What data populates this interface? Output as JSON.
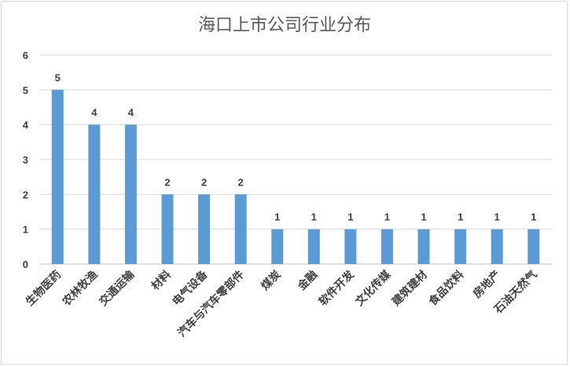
{
  "chart_data": {
    "type": "bar",
    "title": "海口上市公司行业分布",
    "xlabel": "",
    "ylabel": "",
    "ylim": [
      0,
      6
    ],
    "yticks": [
      0,
      1,
      2,
      3,
      4,
      5,
      6
    ],
    "grid": true,
    "legend": "none",
    "bar_color": "#5b9bd5",
    "categories": [
      "生物医药",
      "农林牧渔",
      "交通运输",
      "材料",
      "电气设备",
      "汽车与汽车零部件",
      "煤炭",
      "金融",
      "软件开发",
      "文化传媒",
      "建筑建材",
      "食品饮料",
      "房地产",
      "石油天然气"
    ],
    "values": [
      5,
      4,
      4,
      2,
      2,
      2,
      1,
      1,
      1,
      1,
      1,
      1,
      1,
      1
    ]
  }
}
